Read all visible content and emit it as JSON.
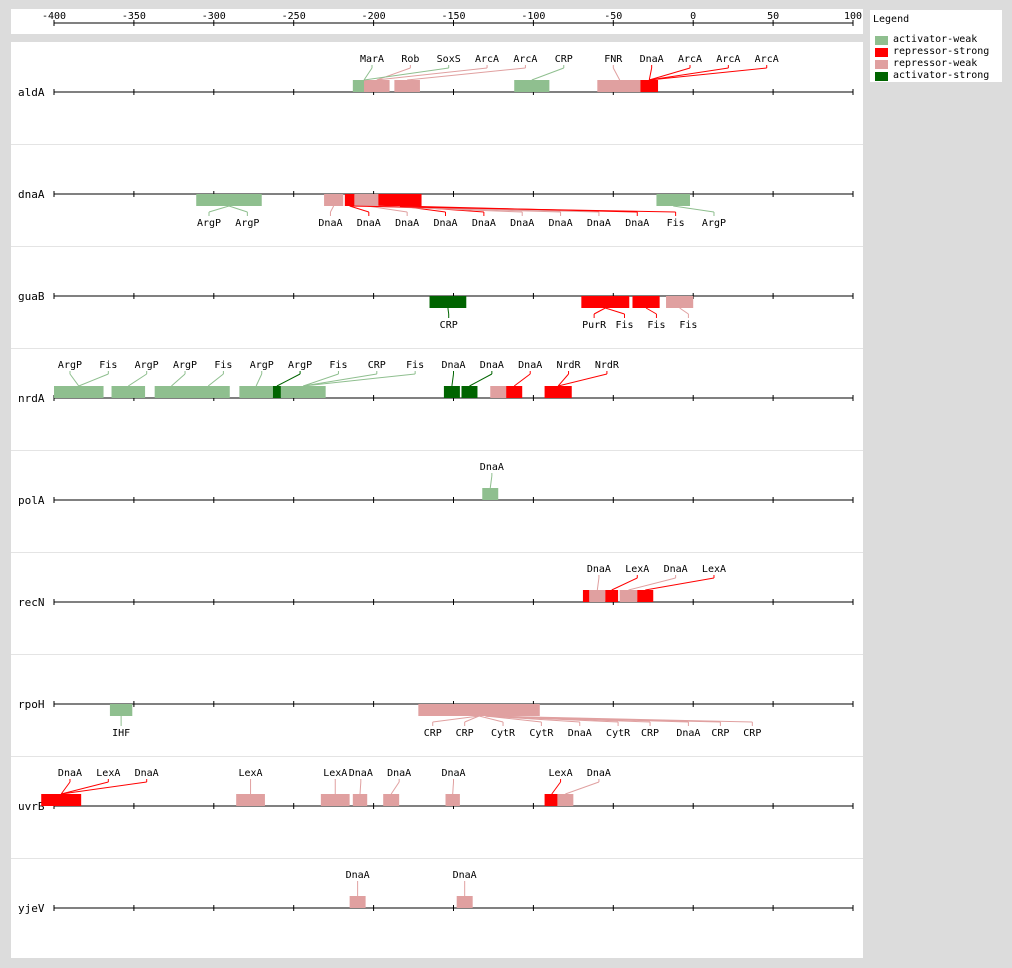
{
  "axis": {
    "min": -400,
    "max": 100,
    "ticks": [
      -400,
      -350,
      -300,
      -250,
      -200,
      -150,
      -100,
      -50,
      0,
      50,
      100
    ]
  },
  "legend": {
    "title": "Legend",
    "items": [
      {
        "label": "activator-weak",
        "color": "#8fbf8f"
      },
      {
        "label": "repressor-strong",
        "color": "#ff0000"
      },
      {
        "label": "repressor-weak",
        "color": "#e0a0a0"
      },
      {
        "label": "activator-strong",
        "color": "#006400"
      }
    ]
  },
  "colors": {
    "activator-weak": "#8fbf8f",
    "repressor-strong": "#ff0000",
    "repressor-weak": "#e0a0a0",
    "activator-strong": "#006400"
  },
  "genes": [
    {
      "name": "aldA",
      "side": "above",
      "sites": [
        {
          "s": -213,
          "e": -199,
          "t": "activator-weak"
        },
        {
          "s": -206,
          "e": -190,
          "t": "repressor-weak"
        },
        {
          "s": -187,
          "e": -171,
          "t": "repressor-weak"
        },
        {
          "s": -112,
          "e": -90,
          "t": "activator-weak"
        },
        {
          "s": -60,
          "e": -32,
          "t": "repressor-weak"
        },
        {
          "s": -33,
          "e": -22,
          "t": "repressor-strong"
        }
      ],
      "labels": [
        {
          "text": "MarA",
          "x": -201,
          "si": 0
        },
        {
          "text": "Rob",
          "x": -177,
          "si": 1
        },
        {
          "text": "SoxS",
          "x": -153,
          "si": 0
        },
        {
          "text": "ArcA",
          "x": -129,
          "si": 1
        },
        {
          "text": "ArcA",
          "x": -105,
          "si": 2
        },
        {
          "text": "CRP",
          "x": -81,
          "si": 3
        },
        {
          "text": "FNR",
          "x": -50,
          "si": 4
        },
        {
          "text": "DnaA",
          "x": -26,
          "si": 5
        },
        {
          "text": "ArcA",
          "x": -2,
          "si": 5
        },
        {
          "text": "ArcA",
          "x": 22,
          "si": 5
        },
        {
          "text": "ArcA",
          "x": 46,
          "si": 5
        }
      ]
    },
    {
      "name": "dnaA",
      "side": "below",
      "sites": [
        {
          "s": -311,
          "e": -270,
          "t": "activator-weak"
        },
        {
          "s": -231,
          "e": -219,
          "t": "repressor-weak"
        },
        {
          "s": -218,
          "e": -212,
          "t": "repressor-strong"
        },
        {
          "s": -212,
          "e": -196,
          "t": "repressor-weak"
        },
        {
          "s": -197,
          "e": -170,
          "t": "repressor-strong"
        },
        {
          "s": -23,
          "e": -2,
          "t": "activator-weak"
        }
      ],
      "labels": [
        {
          "text": "ArgP",
          "x": -303,
          "si": 0
        },
        {
          "text": "ArgP",
          "x": -279,
          "si": 0
        },
        {
          "text": "DnaA",
          "x": -227,
          "si": 1
        },
        {
          "text": "DnaA",
          "x": -203,
          "si": 2
        },
        {
          "text": "DnaA",
          "x": -179,
          "si": 3
        },
        {
          "text": "DnaA",
          "x": -155,
          "si": 4
        },
        {
          "text": "DnaA",
          "x": -131,
          "si": 4
        },
        {
          "text": "DnaA",
          "x": -107,
          "si": 3
        },
        {
          "text": "DnaA",
          "x": -83,
          "si": 3
        },
        {
          "text": "DnaA",
          "x": -59,
          "si": 3
        },
        {
          "text": "DnaA",
          "x": -35,
          "si": 4
        },
        {
          "text": "Fis",
          "x": -11,
          "si": 2
        },
        {
          "text": "ArgP",
          "x": 13,
          "si": 5
        }
      ]
    },
    {
      "name": "guaB",
      "side": "below",
      "sites": [
        {
          "s": -165,
          "e": -142,
          "t": "activator-strong"
        },
        {
          "s": -70,
          "e": -40,
          "t": "repressor-strong"
        },
        {
          "s": -38,
          "e": -21,
          "t": "repressor-strong"
        },
        {
          "s": -17,
          "e": 0,
          "t": "repressor-weak"
        }
      ],
      "labels": [
        {
          "text": "CRP",
          "x": -153,
          "si": 0
        },
        {
          "text": "PurR",
          "x": -62,
          "si": 1
        },
        {
          "text": "Fis",
          "x": -43,
          "si": 1
        },
        {
          "text": "Fis",
          "x": -23,
          "si": 2
        },
        {
          "text": "Fis",
          "x": -3,
          "si": 3
        }
      ]
    },
    {
      "name": "nrdA",
      "side": "above",
      "sites": [
        {
          "s": -400,
          "e": -369,
          "t": "activator-weak"
        },
        {
          "s": -364,
          "e": -343,
          "t": "activator-weak"
        },
        {
          "s": -337,
          "e": -316,
          "t": "activator-weak"
        },
        {
          "s": -317,
          "e": -290,
          "t": "activator-weak"
        },
        {
          "s": -284,
          "e": -263,
          "t": "activator-weak"
        },
        {
          "s": -263,
          "e": -258,
          "t": "activator-strong"
        },
        {
          "s": -258,
          "e": -230,
          "t": "activator-weak"
        },
        {
          "s": -156,
          "e": -146,
          "t": "activator-strong"
        },
        {
          "s": -145,
          "e": -135,
          "t": "activator-strong"
        },
        {
          "s": -127,
          "e": -116,
          "t": "repressor-weak"
        },
        {
          "s": -117,
          "e": -107,
          "t": "repressor-strong"
        },
        {
          "s": -93,
          "e": -76,
          "t": "repressor-strong"
        }
      ],
      "labels": [
        {
          "text": "ArgP",
          "x": -390,
          "si": 0
        },
        {
          "text": "Fis",
          "x": -366,
          "si": 0
        },
        {
          "text": "ArgP",
          "x": -342,
          "si": 1
        },
        {
          "text": "ArgP",
          "x": -318,
          "si": 2
        },
        {
          "text": "Fis",
          "x": -294,
          "si": 3
        },
        {
          "text": "ArgP",
          "x": -270,
          "si": 4
        },
        {
          "text": "ArgP",
          "x": -246,
          "si": 5
        },
        {
          "text": "Fis",
          "x": -222,
          "si": 6
        },
        {
          "text": "CRP",
          "x": -198,
          "si": 6
        },
        {
          "text": "Fis",
          "x": -174,
          "si": 6
        },
        {
          "text": "DnaA",
          "x": -150,
          "si": 7
        },
        {
          "text": "DnaA",
          "x": -126,
          "si": 8
        },
        {
          "text": "DnaA",
          "x": -102,
          "si": 10
        },
        {
          "text": "NrdR",
          "x": -78,
          "si": 11
        },
        {
          "text": "NrdR",
          "x": -54,
          "si": 11
        }
      ]
    },
    {
      "name": "polA",
      "side": "above",
      "sites": [
        {
          "s": -132,
          "e": -122,
          "t": "activator-weak"
        }
      ],
      "labels": [
        {
          "text": "DnaA",
          "x": -126,
          "si": 0
        }
      ]
    },
    {
      "name": "recN",
      "side": "above",
      "sites": [
        {
          "s": -69,
          "e": -65,
          "t": "repressor-strong"
        },
        {
          "s": -65,
          "e": -55,
          "t": "repressor-weak"
        },
        {
          "s": -55,
          "e": -47,
          "t": "repressor-strong"
        },
        {
          "s": -46,
          "e": -35,
          "t": "repressor-weak"
        },
        {
          "s": -35,
          "e": -25,
          "t": "repressor-strong"
        }
      ],
      "labels": [
        {
          "text": "DnaA",
          "x": -59,
          "si": 1
        },
        {
          "text": "LexA",
          "x": -35,
          "si": 2
        },
        {
          "text": "DnaA",
          "x": -11,
          "si": 3
        },
        {
          "text": "LexA",
          "x": 13,
          "si": 4
        }
      ]
    },
    {
      "name": "rpoH",
      "side": "below",
      "sites": [
        {
          "s": -365,
          "e": -351,
          "t": "activator-weak"
        },
        {
          "s": -172,
          "e": -96,
          "t": "repressor-weak"
        },
        {
          "s": -160,
          "e": -100,
          "t": "repressor-weak"
        }
      ],
      "labels": [
        {
          "text": "IHF",
          "x": -358,
          "si": 0
        },
        {
          "text": "CRP",
          "x": -163,
          "si": 1
        },
        {
          "text": "CRP",
          "x": -143,
          "si": 1
        },
        {
          "text": "CytR",
          "x": -119,
          "si": 1
        },
        {
          "text": "CytR",
          "x": -95,
          "si": 2
        },
        {
          "text": "DnaA",
          "x": -71,
          "si": 2
        },
        {
          "text": "CytR",
          "x": -47,
          "si": 2
        },
        {
          "text": "CRP",
          "x": -27,
          "si": 2
        },
        {
          "text": "DnaA",
          "x": -3,
          "si": 2
        },
        {
          "text": "CRP",
          "x": 17,
          "si": 2
        },
        {
          "text": "CRP",
          "x": 37,
          "si": 2
        }
      ]
    },
    {
      "name": "uvrB",
      "side": "above",
      "sites": [
        {
          "s": -408,
          "e": -383,
          "t": "repressor-strong"
        },
        {
          "s": -286,
          "e": -268,
          "t": "repressor-weak"
        },
        {
          "s": -233,
          "e": -215,
          "t": "repressor-weak"
        },
        {
          "s": -213,
          "e": -204,
          "t": "repressor-weak"
        },
        {
          "s": -194,
          "e": -184,
          "t": "repressor-weak"
        },
        {
          "s": -155,
          "e": -146,
          "t": "repressor-weak"
        },
        {
          "s": -93,
          "e": -84,
          "t": "repressor-strong"
        },
        {
          "s": -85,
          "e": -75,
          "t": "repressor-weak"
        }
      ],
      "labels": [
        {
          "text": "DnaA",
          "x": -390,
          "si": 0
        },
        {
          "text": "LexA",
          "x": -366,
          "si": 0
        },
        {
          "text": "DnaA",
          "x": -342,
          "si": 0
        },
        {
          "text": "LexA",
          "x": -277,
          "si": 1
        },
        {
          "text": "LexA",
          "x": -224,
          "si": 2
        },
        {
          "text": "DnaA",
          "x": -208,
          "si": 3
        },
        {
          "text": "DnaA",
          "x": -184,
          "si": 4
        },
        {
          "text": "DnaA",
          "x": -150,
          "si": 5
        },
        {
          "text": "LexA",
          "x": -83,
          "si": 6
        },
        {
          "text": "DnaA",
          "x": -59,
          "si": 7
        }
      ]
    },
    {
      "name": "yjeV",
      "side": "above",
      "sites": [
        {
          "s": -215,
          "e": -205,
          "t": "repressor-weak"
        },
        {
          "s": -148,
          "e": -138,
          "t": "repressor-weak"
        }
      ],
      "labels": [
        {
          "text": "DnaA",
          "x": -210,
          "si": 0
        },
        {
          "text": "DnaA",
          "x": -143,
          "si": 1
        }
      ]
    }
  ]
}
